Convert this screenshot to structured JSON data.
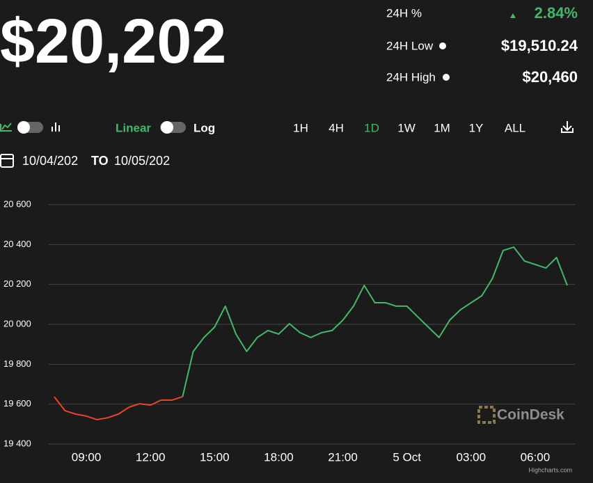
{
  "header": {
    "price": "$20,202",
    "stats": [
      {
        "label": "24H %",
        "value": "2.84%"
      },
      {
        "label": "24H Low",
        "value": "$19,510.24"
      },
      {
        "label": "24H High",
        "value": "$20,460"
      }
    ]
  },
  "controls": {
    "linear": "Linear",
    "log": "Log",
    "ranges": [
      "1H",
      "4H",
      "1D",
      "1W",
      "1M",
      "1Y",
      "ALL"
    ],
    "active_range": 2,
    "date_from": "10/04/202",
    "date_to_label": "TO",
    "date_to": "10/05/202"
  },
  "watermark": "CoinDesk",
  "credit": "Highcharts.com",
  "chart_data": {
    "type": "line",
    "x": [
      "07:30",
      "08:00",
      "08:30",
      "09:00",
      "09:30",
      "10:00",
      "10:30",
      "11:00",
      "11:30",
      "12:00",
      "12:30",
      "13:00",
      "13:30",
      "14:00",
      "14:30",
      "15:00",
      "15:30",
      "16:00",
      "16:30",
      "17:00",
      "17:30",
      "18:00",
      "18:30",
      "19:00",
      "19:30",
      "20:00",
      "20:30",
      "21:00",
      "21:30",
      "22:00",
      "22:30",
      "23:00",
      "23:30",
      "5 Oct",
      "00:30",
      "01:00",
      "01:30",
      "02:00",
      "02:30",
      "03:00",
      "03:30",
      "04:00",
      "04:30",
      "05:00",
      "05:30",
      "06:00",
      "06:30",
      "07:00",
      "07:30"
    ],
    "series": [
      {
        "color": "#e8452b",
        "values": [
          19637,
          19567,
          19550,
          19540,
          19522,
          19532,
          19550,
          19585,
          19602,
          19595,
          19620,
          19620,
          19637,
          null,
          null,
          null,
          null,
          null,
          null,
          null,
          null,
          null,
          null,
          null,
          null,
          null,
          null,
          null,
          null,
          null,
          null,
          null,
          null,
          null,
          null,
          null,
          null,
          null,
          null,
          null,
          null,
          null,
          null,
          null,
          null,
          null,
          null,
          null,
          null
        ]
      },
      {
        "color": "#43b86a",
        "values": [
          null,
          null,
          null,
          null,
          null,
          null,
          null,
          null,
          null,
          null,
          null,
          null,
          19637,
          19864,
          19934,
          19986,
          20091,
          19951,
          19864,
          19934,
          19969,
          19951,
          20003,
          19958,
          19934,
          19958,
          19969,
          20021,
          20091,
          20195,
          20108,
          20108,
          20091,
          20091,
          20038,
          19986,
          19934,
          20021,
          20073,
          20108,
          20143,
          20230,
          20370,
          20387,
          20317,
          20300,
          20282,
          20335,
          20195
        ]
      }
    ],
    "ylim": [
      19400,
      20600
    ],
    "yticks": [
      {
        "value": 19400,
        "label": "19 400"
      },
      {
        "value": 19600,
        "label": "19 600"
      },
      {
        "value": 19800,
        "label": "19 800"
      },
      {
        "value": 20000,
        "label": "20 000"
      },
      {
        "value": 20200,
        "label": "20 200"
      },
      {
        "value": 20400,
        "label": "20 400"
      },
      {
        "value": 20600,
        "label": "20 600"
      }
    ],
    "xticks": [
      "09:00",
      "12:00",
      "15:00",
      "18:00",
      "21:00",
      "5 Oct",
      "03:00",
      "06:00"
    ],
    "grid": true
  }
}
